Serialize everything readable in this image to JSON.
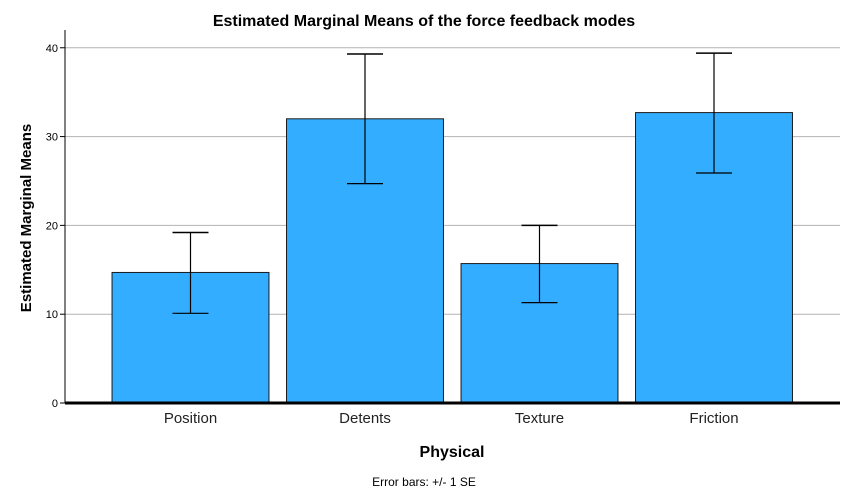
{
  "chart_data": {
    "type": "bar",
    "title": "Estimated Marginal Means of the force feedback modes",
    "xlabel": "Physical",
    "ylabel": "Estimated Marginal Means",
    "categories": [
      "Position",
      "Detents",
      "Texture",
      "Friction"
    ],
    "values": [
      14.7,
      32.0,
      15.7,
      32.7
    ],
    "error_low": [
      10.1,
      24.7,
      11.3,
      25.9
    ],
    "error_high": [
      19.2,
      39.3,
      20.0,
      39.4
    ],
    "ylim": [
      0,
      42
    ],
    "yticks": [
      0,
      10,
      20,
      30,
      40
    ],
    "grid": true,
    "footnote": "Error bars: +/- 1 SE",
    "bar_color": "#33adff",
    "bar_stroke": "#1a1a1a",
    "grid_color": "#b3b3b3"
  }
}
